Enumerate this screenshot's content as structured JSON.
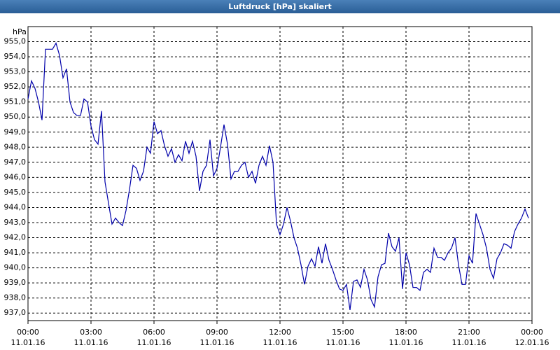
{
  "chart_data": {
    "type": "line",
    "title": "Luftdruck [hPa] skaliert",
    "y_label": "hPa",
    "x": [
      0,
      10,
      20,
      30,
      40,
      50,
      60,
      70,
      80,
      90,
      100,
      110,
      120,
      130,
      140,
      150,
      160,
      170,
      180,
      190,
      200,
      210,
      220,
      230,
      240,
      250,
      260,
      270,
      280,
      290,
      300,
      310,
      320,
      330,
      340,
      350,
      360,
      370,
      380,
      390,
      400,
      410,
      420,
      430,
      440,
      450,
      460,
      470,
      480,
      490,
      500,
      510,
      520,
      530,
      540,
      550,
      560,
      570,
      580,
      590,
      600,
      610,
      620,
      630,
      640,
      650,
      660,
      670,
      680,
      690,
      700,
      710,
      720,
      730,
      740,
      750,
      760,
      770,
      780,
      790,
      800,
      810,
      820,
      830,
      840,
      850,
      860,
      870,
      880,
      890,
      900,
      910,
      920,
      930,
      940,
      950,
      960,
      970,
      980,
      990,
      1000,
      1010,
      1020,
      1030,
      1040,
      1050,
      1060,
      1070,
      1080,
      1090,
      1100,
      1110,
      1120,
      1130,
      1140,
      1150,
      1160,
      1170,
      1180,
      1190,
      1200,
      1210,
      1220,
      1230,
      1240,
      1250,
      1260,
      1270,
      1280,
      1290,
      1300,
      1310,
      1320,
      1330,
      1340,
      1350,
      1360,
      1370,
      1380,
      1390,
      1400,
      1410,
      1420,
      1430
    ],
    "series": [
      {
        "color": "#0000aa",
        "values": [
          951.2,
          952.4,
          951.9,
          951.0,
          949.8,
          954.5,
          954.5,
          954.5,
          954.9,
          954.1,
          952.6,
          953.2,
          951.0,
          950.3,
          950.1,
          950.1,
          951.2,
          951.0,
          949.4,
          948.5,
          948.2,
          950.4,
          945.7,
          944.3,
          942.9,
          943.3,
          943.0,
          942.8,
          943.8,
          945.2,
          946.8,
          946.6,
          945.8,
          946.4,
          948.0,
          947.6,
          949.7,
          948.9,
          949.1,
          948.1,
          947.4,
          947.9,
          947.0,
          947.5,
          947.1,
          948.4,
          947.6,
          948.4,
          947.4,
          945.1,
          946.4,
          946.8,
          948.5,
          946.1,
          946.6,
          948.0,
          949.5,
          948.2,
          945.9,
          946.4,
          946.4,
          946.8,
          947.0,
          946.0,
          946.4,
          945.6,
          946.8,
          947.4,
          946.8,
          948.1,
          947.0,
          942.9,
          942.2,
          942.9,
          944.0,
          943.1,
          942.0,
          941.3,
          940.2,
          938.9,
          940.1,
          940.6,
          940.1,
          941.4,
          940.3,
          941.6,
          940.5,
          939.9,
          939.2,
          938.6,
          938.5,
          938.9,
          937.2,
          939.1,
          939.2,
          938.7,
          939.9,
          939.2,
          937.9,
          937.4,
          939.4,
          940.2,
          940.3,
          942.3,
          941.4,
          941.1,
          942.0,
          938.6,
          941.0,
          940.2,
          938.7,
          938.7,
          938.5,
          939.7,
          939.9,
          939.7,
          941.3,
          940.7,
          940.7,
          940.5,
          941.0,
          941.3,
          942.0,
          940.2,
          938.9,
          938.9,
          940.8,
          940.3,
          943.6,
          942.9,
          942.2,
          941.3,
          939.9,
          939.3,
          940.6,
          941.0,
          941.6,
          941.5,
          941.3,
          942.4,
          942.9,
          943.3,
          943.9,
          943.3
        ]
      }
    ],
    "xlim": [
      0,
      1440
    ],
    "xticks": [
      {
        "value": 0,
        "label": "00:00"
      },
      {
        "value": 180,
        "label": "03:00"
      },
      {
        "value": 360,
        "label": "06:00"
      },
      {
        "value": 540,
        "label": "09:00"
      },
      {
        "value": 720,
        "label": "12:00"
      },
      {
        "value": 900,
        "label": "15:00"
      },
      {
        "value": 1080,
        "label": "18:00"
      },
      {
        "value": 1260,
        "label": "21:00"
      },
      {
        "value": 1440,
        "label": "00:00"
      }
    ],
    "xtick_dates": [
      "11.01.16",
      "11.01.16",
      "11.01.16",
      "11.01.16",
      "11.01.16",
      "11.01.16",
      "11.01.16",
      "11.01.16",
      "12.01.16"
    ],
    "ylim": [
      936.5,
      956
    ],
    "yticks": [
      {
        "value": 937,
        "label": "937,0"
      },
      {
        "value": 938,
        "label": "938,0"
      },
      {
        "value": 939,
        "label": "939,0"
      },
      {
        "value": 940,
        "label": "940,0"
      },
      {
        "value": 941,
        "label": "941,0"
      },
      {
        "value": 942,
        "label": "942,0"
      },
      {
        "value": 943,
        "label": "943,0"
      },
      {
        "value": 944,
        "label": "944,0"
      },
      {
        "value": 945,
        "label": "945,0"
      },
      {
        "value": 946,
        "label": "946,0"
      },
      {
        "value": 947,
        "label": "947,0"
      },
      {
        "value": 948,
        "label": "948,0"
      },
      {
        "value": 949,
        "label": "949,0"
      },
      {
        "value": 950,
        "label": "950,0"
      },
      {
        "value": 951,
        "label": "951,0"
      },
      {
        "value": 952,
        "label": "952,0"
      },
      {
        "value": 953,
        "label": "953,0"
      },
      {
        "value": 954,
        "label": "954,0"
      },
      {
        "value": 955,
        "label": "955,0"
      }
    ],
    "grid": true
  }
}
